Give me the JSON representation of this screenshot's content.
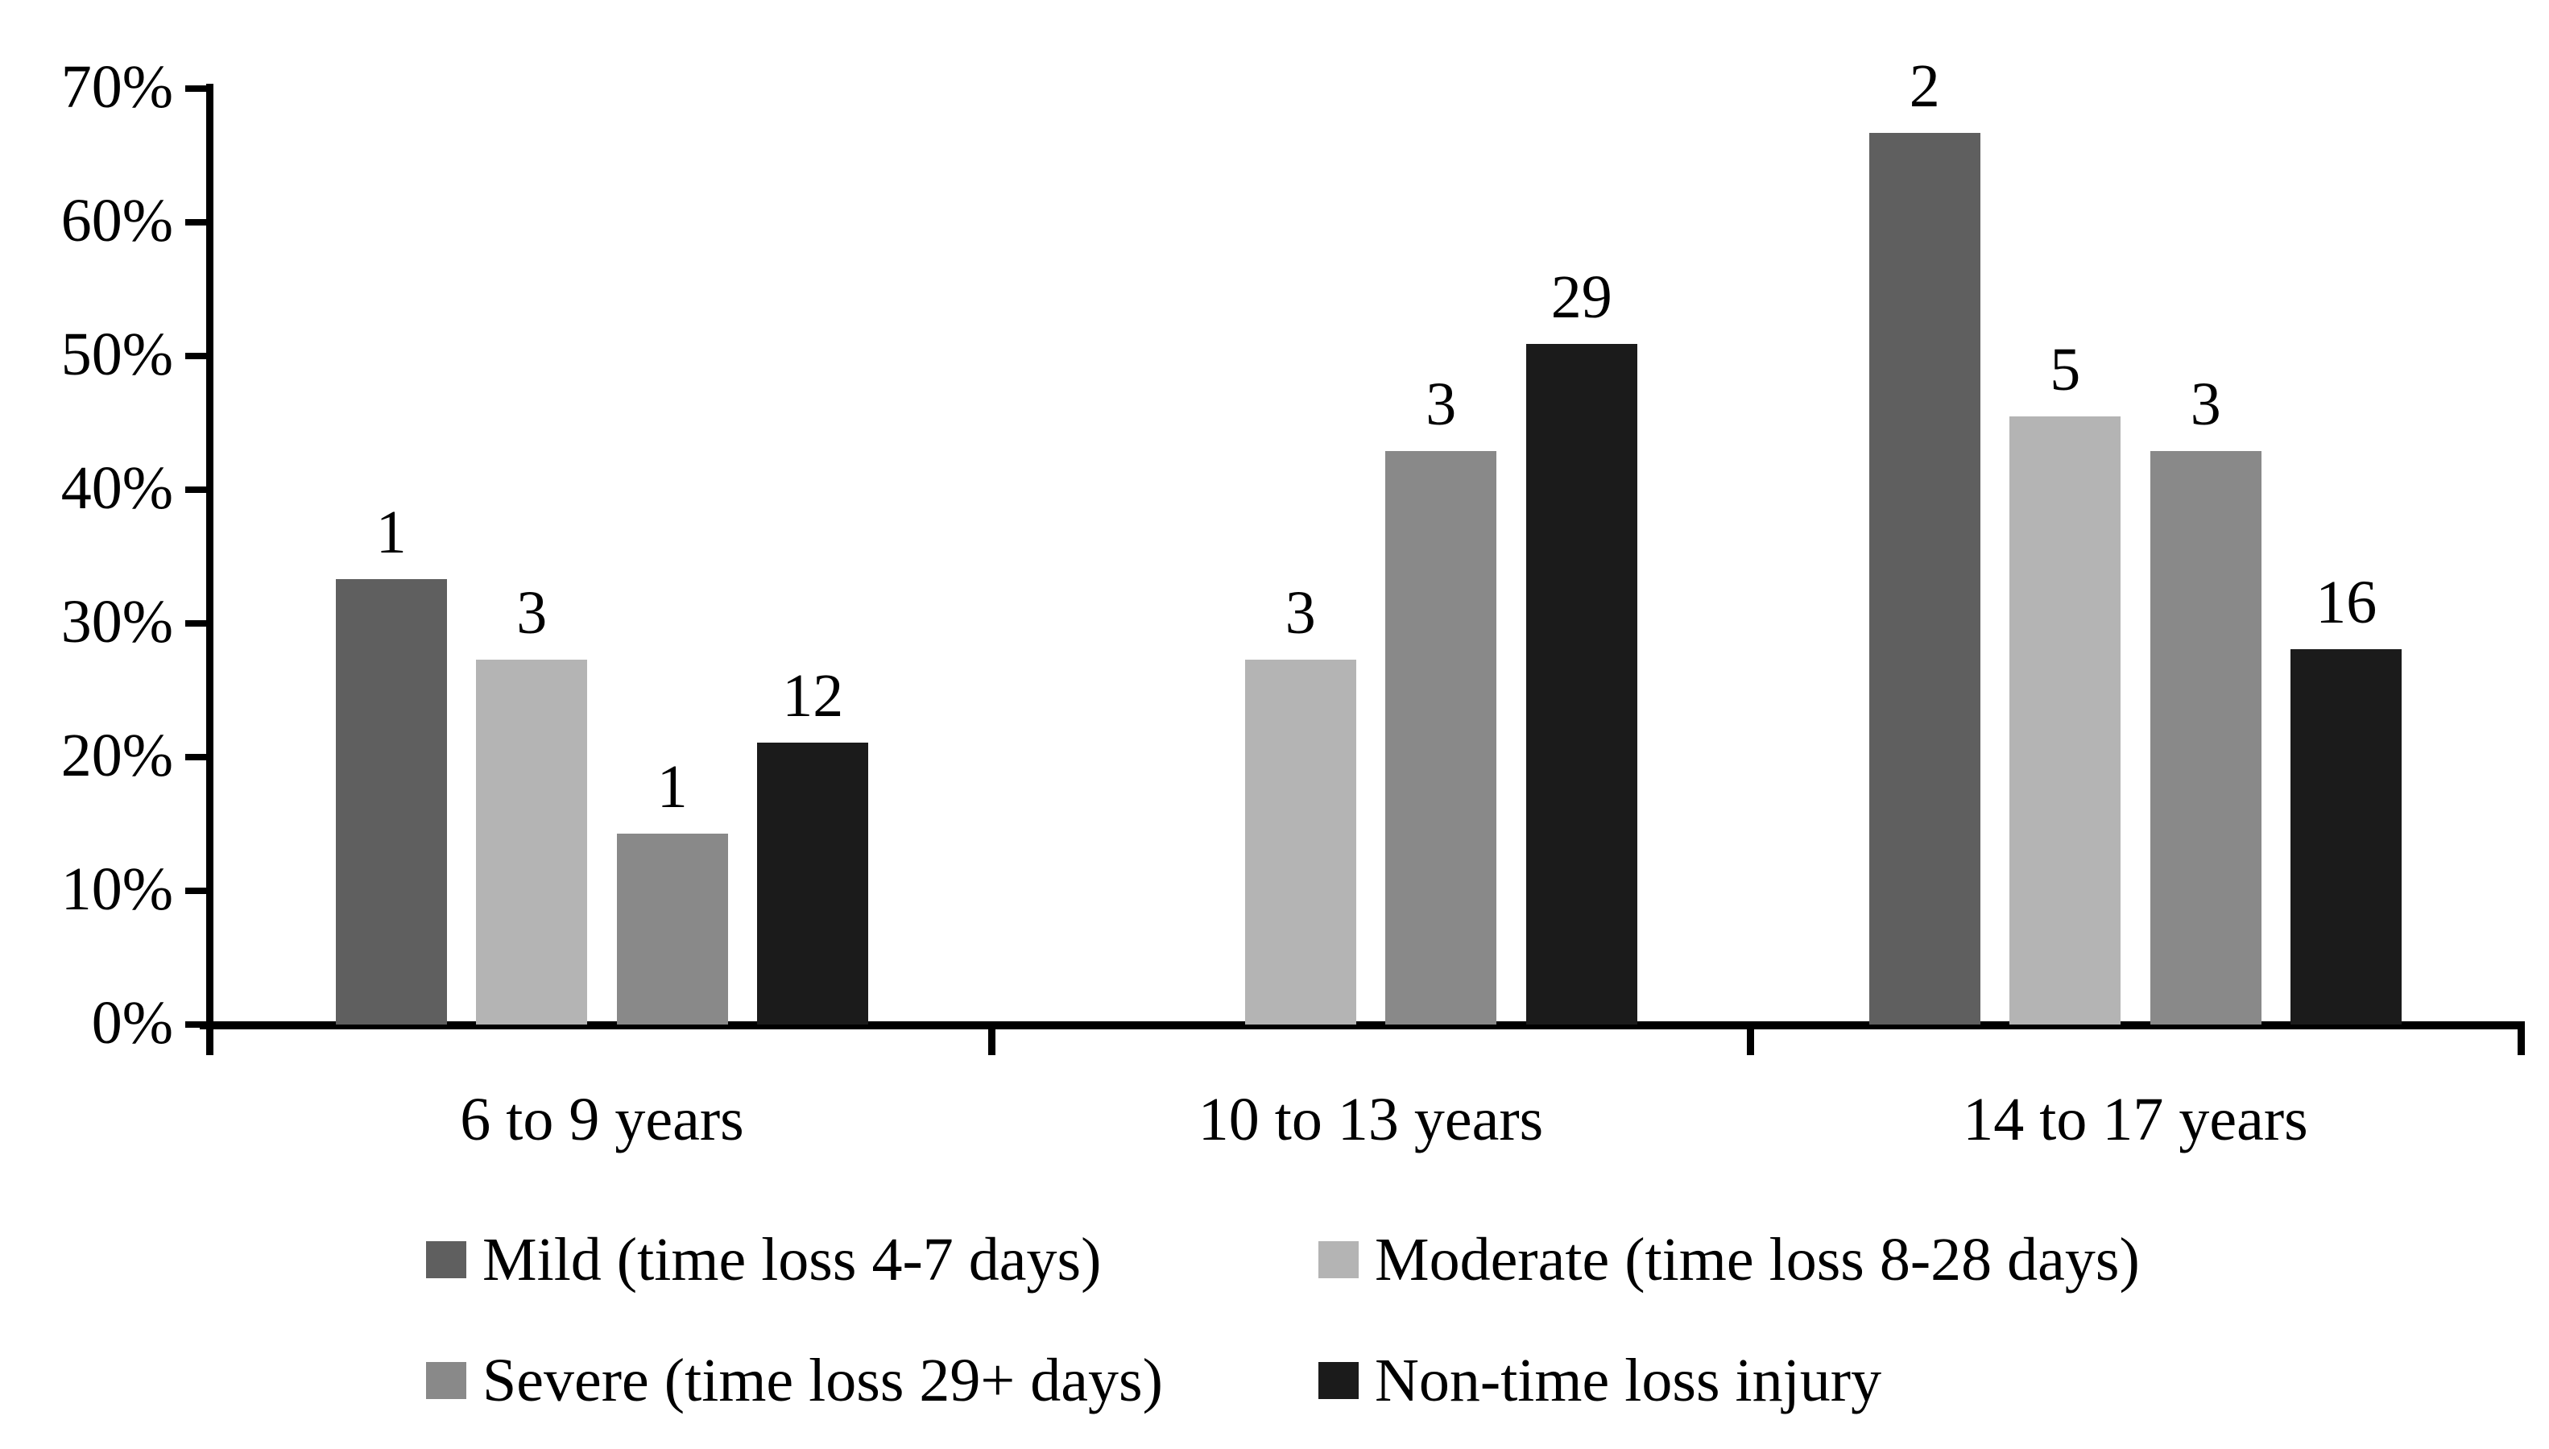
{
  "chart_data": {
    "type": "bar",
    "title": "",
    "categories": [
      "6 to 9 years",
      "10 to 13 years",
      "14 to 17 years"
    ],
    "series": [
      {
        "name": "Mild (time loss 4-7 days)",
        "color": "#5f5f5f",
        "values_pct": [
          33.3,
          0,
          66.7
        ],
        "count_labels": [
          "1",
          "",
          "2"
        ]
      },
      {
        "name": "Moderate (time loss 8-28 days)",
        "color": "#b4b4b4",
        "values_pct": [
          27.3,
          27.3,
          45.5
        ],
        "count_labels": [
          "3",
          "3",
          "5"
        ]
      },
      {
        "name": "Severe (time loss 29+ days)",
        "color": "#898989",
        "values_pct": [
          14.3,
          42.9,
          42.9
        ],
        "count_labels": [
          "1",
          "3",
          "3"
        ]
      },
      {
        "name": "Non-time loss injury",
        "color": "#1b1b1b",
        "values_pct": [
          21.1,
          50.9,
          28.1
        ],
        "count_labels": [
          "12",
          "29",
          "16"
        ]
      }
    ],
    "y_axis": {
      "min": 0,
      "max": 70,
      "tick_step": 10,
      "tick_labels": [
        "0%",
        "10%",
        "20%",
        "30%",
        "40%",
        "50%",
        "60%",
        "70%"
      ]
    },
    "x_axis": {
      "label": ""
    },
    "legend_position": "bottom",
    "grid": false,
    "axis_color": "#000000",
    "text_color": "#000000"
  }
}
